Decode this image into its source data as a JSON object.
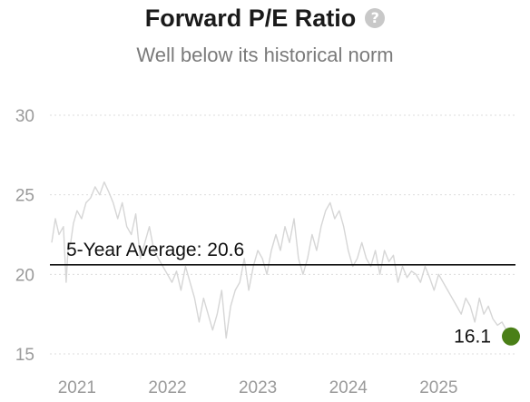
{
  "chart_data": {
    "type": "line",
    "title": "Forward P/E Ratio",
    "subtitle": "Well below its historical norm",
    "help_icon": "question-circle-icon",
    "ylim": [
      15,
      30
    ],
    "yticks": [
      15,
      20,
      25,
      30
    ],
    "xlim": [
      2020.7,
      2025.85
    ],
    "xticks": [
      {
        "value": 2021.0,
        "label": "2021"
      },
      {
        "value": 2022.0,
        "label": "2022"
      },
      {
        "value": 2023.0,
        "label": "2023"
      },
      {
        "value": 2024.0,
        "label": "2024"
      },
      {
        "value": 2025.0,
        "label": "2025"
      }
    ],
    "grid": true,
    "average": {
      "label": "5-Year Average: 20.6",
      "value": 20.6
    },
    "last_point": {
      "x": 2025.8,
      "y": 16.1,
      "label": "16.1"
    },
    "colors": {
      "series": "#d6d6d6",
      "average_line": "#111111",
      "last_point": "#4a7f17",
      "grid": "#dddddd",
      "ticks": "#9a9a9a"
    },
    "series": [
      {
        "x": [
          2020.72,
          2020.76,
          2020.8,
          2020.85,
          2020.88,
          2020.9,
          2020.93,
          2020.96,
          2021.0,
          2021.05,
          2021.1,
          2021.15,
          2021.2,
          2021.25,
          2021.3,
          2021.35,
          2021.4,
          2021.45,
          2021.5,
          2021.55,
          2021.6,
          2021.65,
          2021.7,
          2021.75,
          2021.8,
          2021.85,
          2021.9,
          2021.95,
          2022.0,
          2022.05,
          2022.1,
          2022.15,
          2022.2,
          2022.25,
          2022.3,
          2022.35,
          2022.4,
          2022.45,
          2022.5,
          2022.55,
          2022.6,
          2022.65,
          2022.7,
          2022.75,
          2022.8,
          2022.85,
          2022.9,
          2022.95,
          2023.0,
          2023.05,
          2023.1,
          2023.15,
          2023.2,
          2023.25,
          2023.3,
          2023.35,
          2023.4,
          2023.45,
          2023.5,
          2023.55,
          2023.6,
          2023.65,
          2023.7,
          2023.75,
          2023.8,
          2023.85,
          2023.9,
          2023.95,
          2024.0,
          2024.05,
          2024.1,
          2024.15,
          2024.2,
          2024.25,
          2024.3,
          2024.35,
          2024.4,
          2024.45,
          2024.5,
          2024.55,
          2024.6,
          2024.65,
          2024.7,
          2024.75,
          2024.8,
          2024.85,
          2024.9,
          2024.95,
          2025.0,
          2025.05,
          2025.1,
          2025.15,
          2025.2,
          2025.25,
          2025.3,
          2025.35,
          2025.4,
          2025.45,
          2025.5,
          2025.55,
          2025.6,
          2025.65,
          2025.7,
          2025.75,
          2025.8
        ],
        "y": [
          22.0,
          23.5,
          22.5,
          23.0,
          19.5,
          21.5,
          22.0,
          23.2,
          24.0,
          23.5,
          24.5,
          24.8,
          25.5,
          25.0,
          25.8,
          25.2,
          24.5,
          23.5,
          24.5,
          23.0,
          22.5,
          23.8,
          21.0,
          22.0,
          23.0,
          21.5,
          21.0,
          20.5,
          20.0,
          19.5,
          20.2,
          19.0,
          20.5,
          19.5,
          18.5,
          17.0,
          18.5,
          17.5,
          16.5,
          17.5,
          19.0,
          16.0,
          18.0,
          19.0,
          19.5,
          21.0,
          19.0,
          20.5,
          21.5,
          21.0,
          20.0,
          21.5,
          22.5,
          21.5,
          23.0,
          22.0,
          23.5,
          21.0,
          20.0,
          21.0,
          22.5,
          21.5,
          23.0,
          24.0,
          24.5,
          23.5,
          24.0,
          23.0,
          21.5,
          20.5,
          21.0,
          22.0,
          21.0,
          20.5,
          21.5,
          20.0,
          21.5,
          20.8,
          21.2,
          19.5,
          20.5,
          19.8,
          20.2,
          20.0,
          19.5,
          20.5,
          19.8,
          19.0,
          20.0,
          19.5,
          19.0,
          18.5,
          18.0,
          17.5,
          18.5,
          18.0,
          17.0,
          18.5,
          17.5,
          18.0,
          17.2,
          16.8,
          17.0,
          16.5,
          16.1
        ]
      }
    ]
  }
}
